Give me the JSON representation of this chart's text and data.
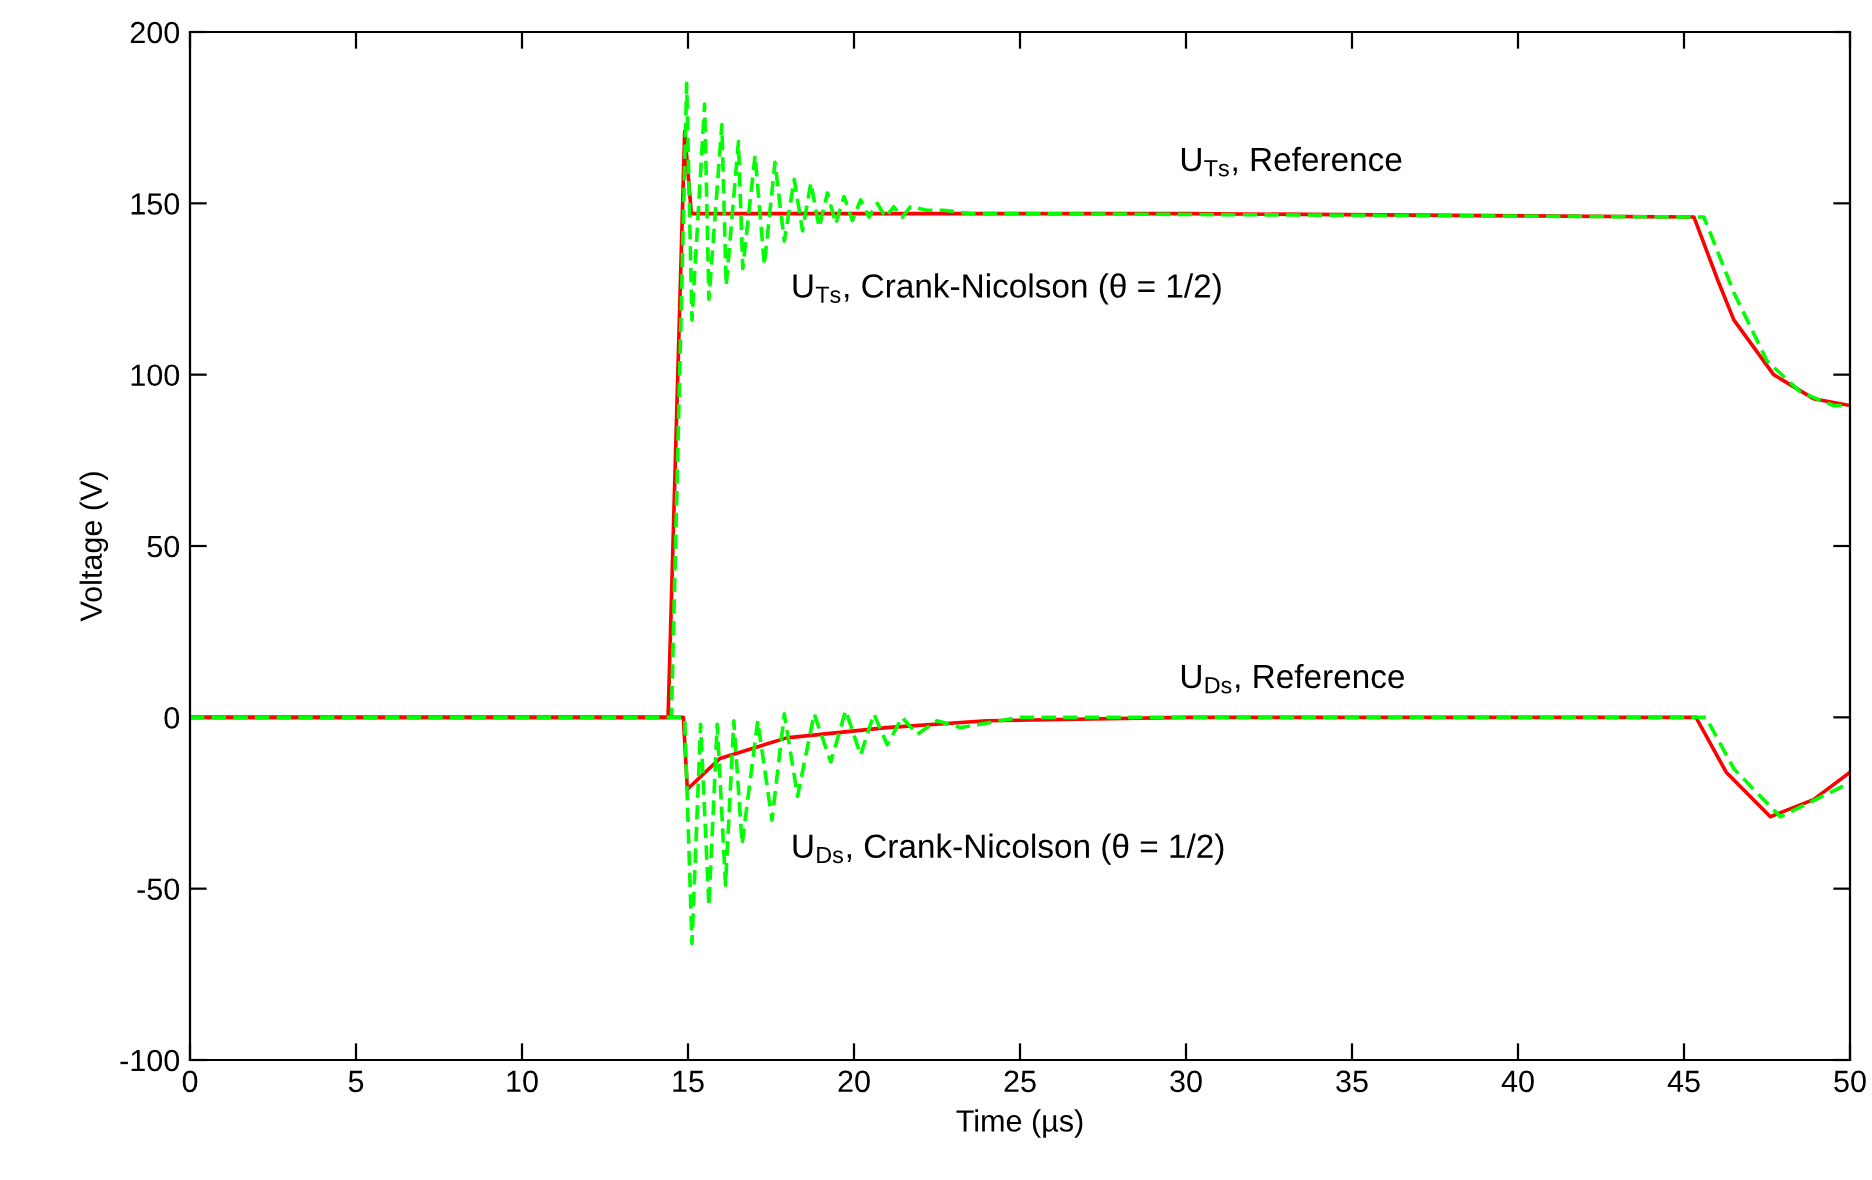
{
  "chart_data": {
    "type": "line",
    "xlabel": "Time (µs)",
    "ylabel": "Voltage (V)",
    "xlim": [
      0,
      50
    ],
    "ylim": [
      -100,
      200
    ],
    "xticks": [
      0,
      5,
      10,
      15,
      20,
      25,
      30,
      35,
      40,
      45,
      50
    ],
    "yticks": [
      -100,
      -50,
      0,
      50,
      100,
      150,
      200
    ],
    "grid": false,
    "legend": false,
    "marker": "none",
    "series": [
      {
        "name": "U$_{Ts}$, Reference",
        "color": "#ff0000",
        "line_style": "solid",
        "x": [
          0,
          14.4,
          14.9,
          15.1,
          30,
          45.3,
          46,
          46.5,
          47.7,
          48.9,
          50
        ],
        "values": [
          0,
          0,
          171,
          147,
          147,
          146,
          128,
          116,
          100,
          93,
          91
        ]
      },
      {
        "name": "U$_{Ts}$, Crank-Nicolson (θ = 1/2)",
        "color": "#00ff00",
        "line_style": "dashed",
        "x": [
          0,
          14.5,
          14.96,
          15.12,
          15.5,
          15.63,
          16.02,
          16.15,
          16.52,
          16.65,
          17.02,
          17.3,
          17.62,
          17.9,
          18.2,
          18.45,
          18.7,
          18.95,
          19.2,
          19.45,
          19.7,
          19.95,
          20.2,
          20.45,
          20.7,
          20.95,
          21.2,
          21.45,
          21.7,
          22.2,
          22.7,
          23.5,
          25,
          45.6,
          46.5,
          47.5,
          48.5,
          49.5,
          50
        ],
        "values": [
          0,
          0,
          185,
          116,
          179,
          122,
          173,
          126,
          168,
          131,
          164,
          132,
          162,
          139,
          157,
          142,
          156,
          143,
          153,
          144,
          152,
          145,
          151,
          146,
          150,
          146,
          149,
          146,
          149,
          148,
          148,
          147,
          147,
          146,
          124,
          104,
          95,
          91,
          91
        ]
      },
      {
        "name": "U$_{Ds}$, Reference",
        "color": "#ff0000",
        "line_style": "solid",
        "x": [
          0,
          14.86,
          14.98,
          15.96,
          17.97,
          20.98,
          23.99,
          30,
          45.36,
          46.27,
          47.6,
          48.9,
          50
        ],
        "values": [
          0,
          0,
          -21,
          -12,
          -6,
          -3,
          -1,
          0,
          0,
          -16,
          -29,
          -24,
          -16
        ]
      },
      {
        "name": "U$_{Ds}$, Crank-Nicolson (θ = 1/2)",
        "color": "#00ff00",
        "line_style": "dashed",
        "x": [
          0,
          14.9,
          15.12,
          15.38,
          15.63,
          15.88,
          16.13,
          16.38,
          16.63,
          17.1,
          17.53,
          17.9,
          18.3,
          18.8,
          19.3,
          19.75,
          20.2,
          20.6,
          21.0,
          21.45,
          21.9,
          22.5,
          23.2,
          25,
          45.66,
          46.5,
          47.9,
          49.6,
          50
        ],
        "values": [
          0,
          0,
          -66,
          -2,
          -55,
          -2,
          -49,
          -1,
          -37,
          -1,
          -30,
          1,
          -23,
          1,
          -13,
          2,
          -11,
          1,
          -8,
          0,
          -5,
          -1,
          -3,
          0,
          0,
          -15,
          -29,
          -21,
          -19
        ]
      }
    ]
  }
}
